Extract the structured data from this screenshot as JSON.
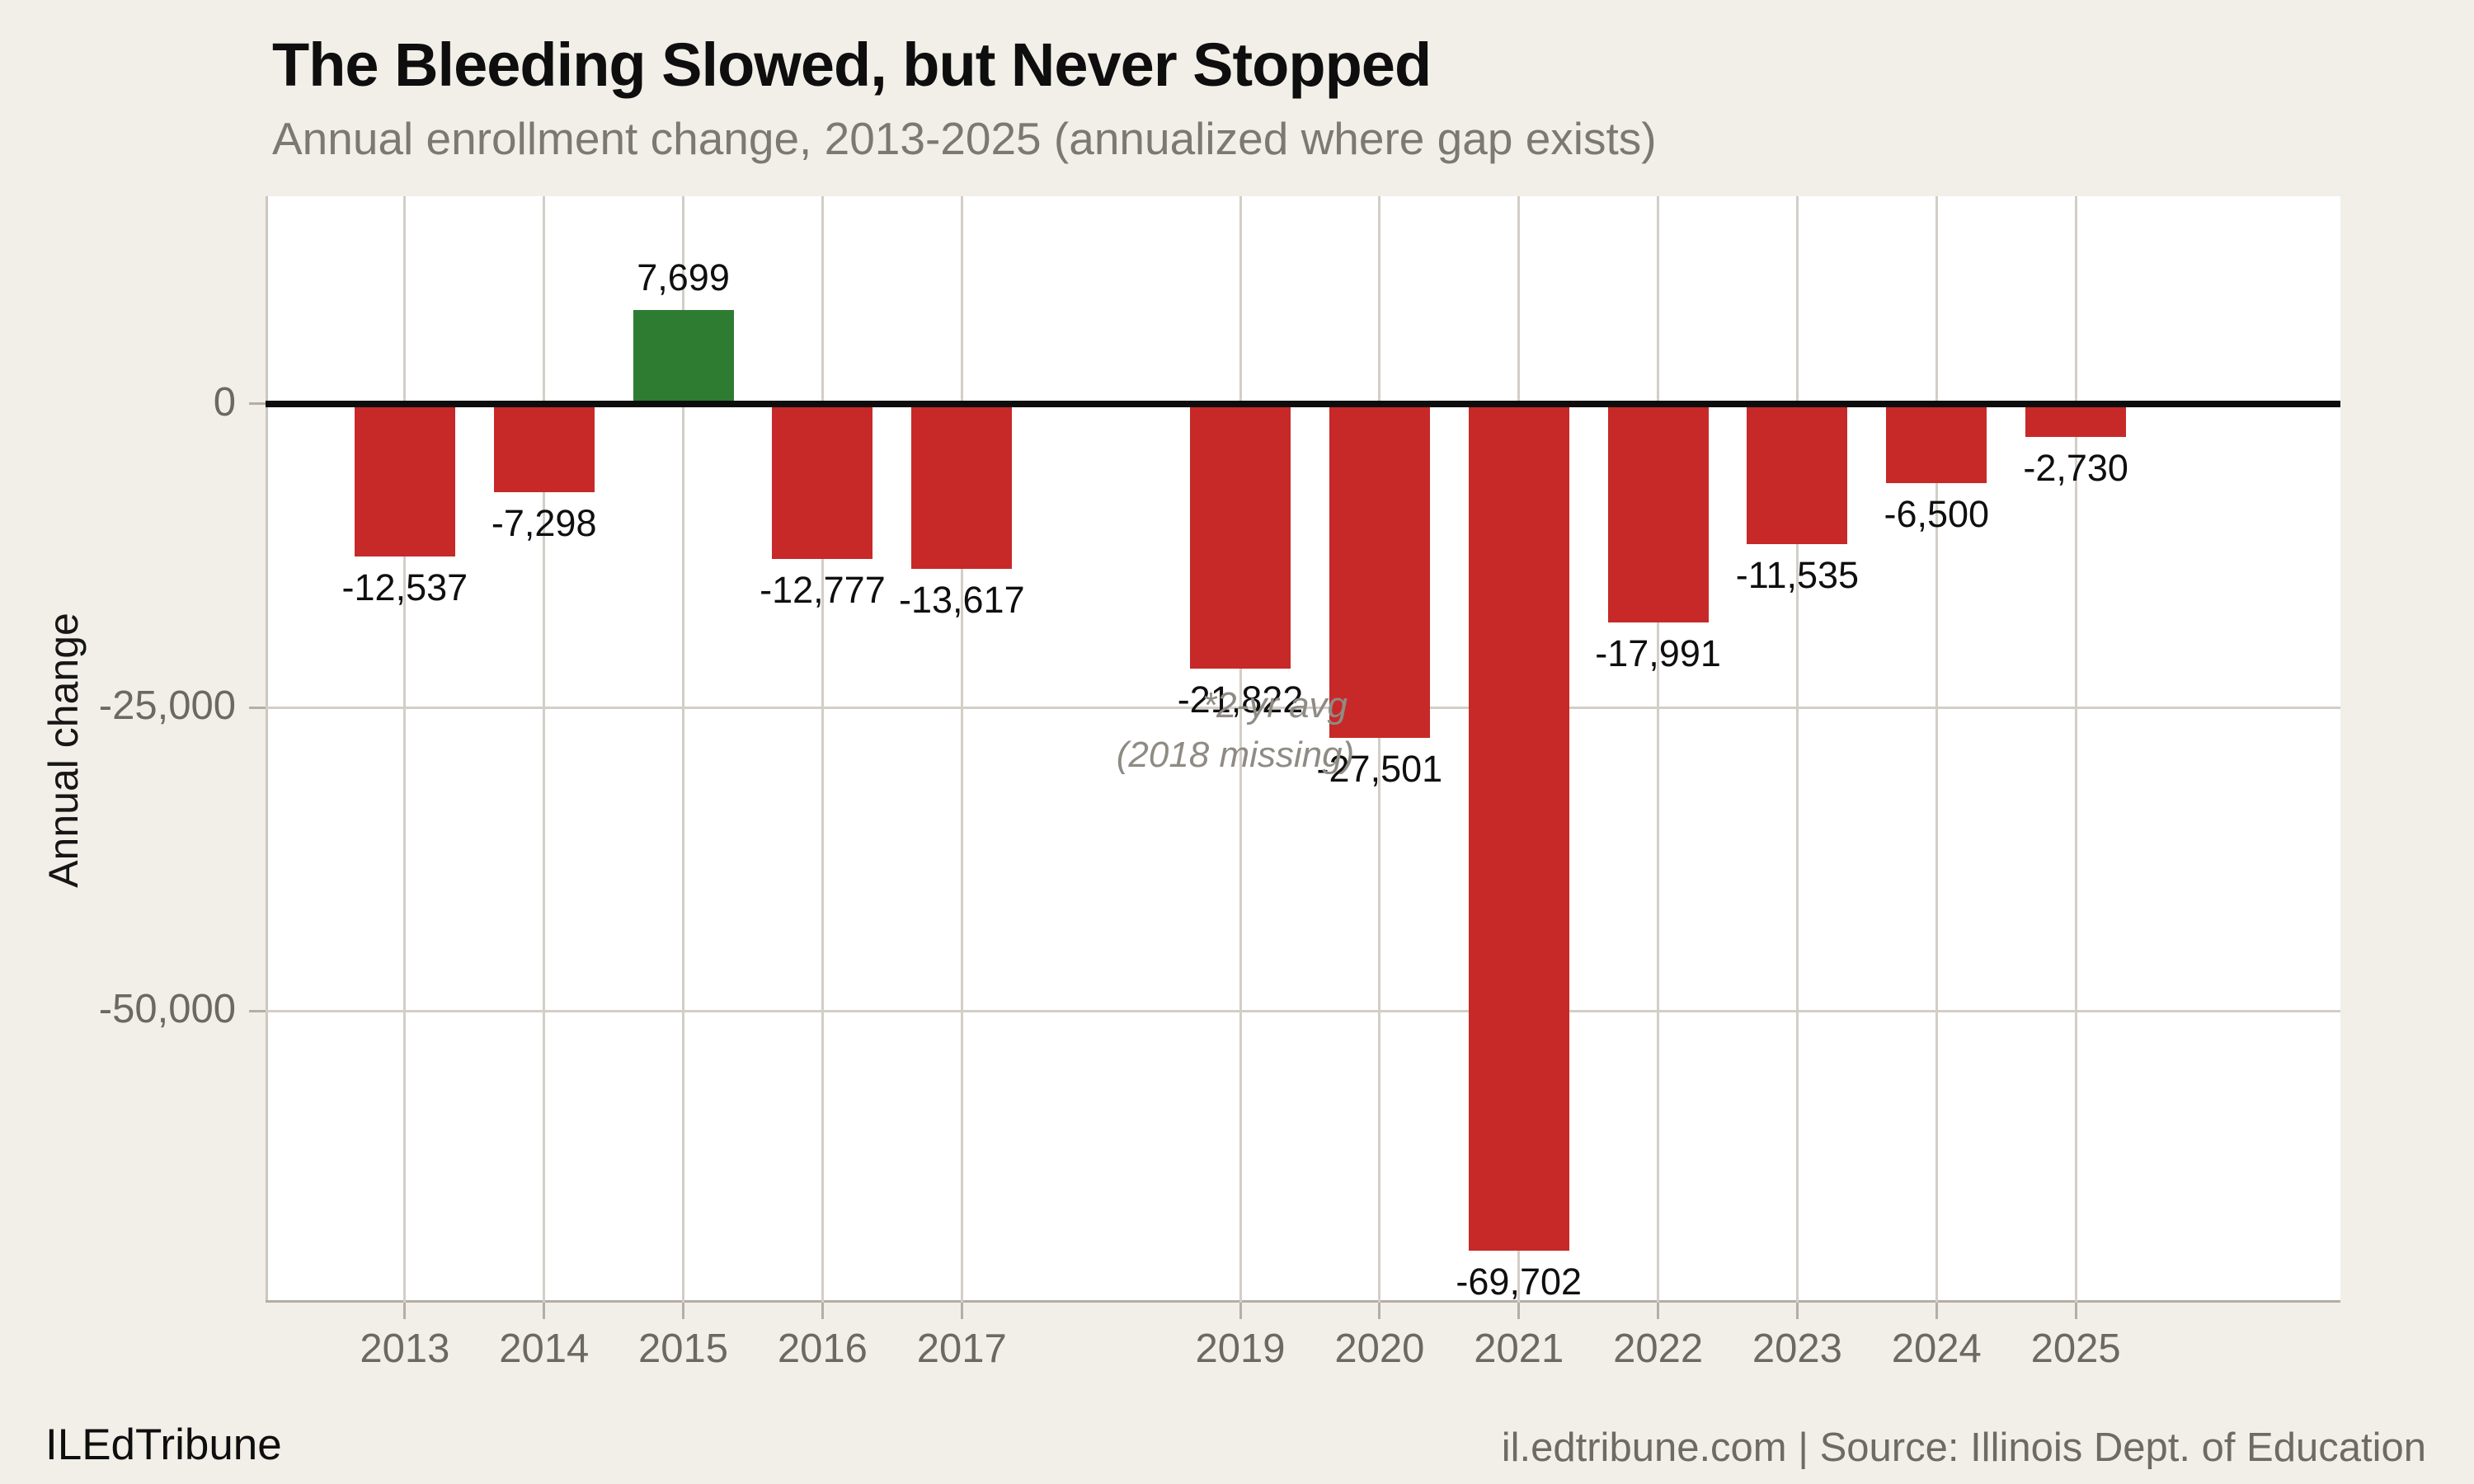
{
  "header": {
    "title": "The Bleeding Slowed, but Never Stopped",
    "subtitle": "Annual enrollment change, 2013-2025 (annualized where gap exists)"
  },
  "footer": {
    "brand": "ILEdTribune",
    "source": "il.edtribune.com | Source: Illinois Dept. of Education"
  },
  "chart_data": {
    "type": "bar",
    "title": "The Bleeding Slowed, but Never Stopped",
    "subtitle": "Annual enrollment change, 2013-2025 (annualized where gap exists)",
    "xlabel": "",
    "ylabel": "Annual change",
    "x": [
      2013,
      2014,
      2015,
      2016,
      2017,
      2019,
      2020,
      2021,
      2022,
      2023,
      2024,
      2025
    ],
    "values": [
      -12537,
      -7298,
      7699,
      -12777,
      -13617,
      -21822,
      -27501,
      -69702,
      -17991,
      -11535,
      -6500,
      -2730
    ],
    "bar_value_labels": [
      "-12,537",
      "-7,298",
      "7,699",
      "-12,777",
      "-13,617",
      "-21,822",
      "-27,501",
      "-69,702",
      "-17,991",
      "-11,535",
      "-6,500",
      "-2,730"
    ],
    "x_tick_labels": [
      "2013",
      "2014",
      "2015",
      "2016",
      "2017",
      "2019",
      "2020",
      "2021",
      "2022",
      "2023",
      "2024",
      "2025"
    ],
    "missing_year": 2018,
    "annotation": {
      "line1": "*2-yr avg",
      "line2": "(2018 missing)",
      "year": 2019
    },
    "yticks": [
      {
        "value": 0,
        "label": "0"
      },
      {
        "value": -25000,
        "label": "-25,000"
      },
      {
        "value": -50000,
        "label": "-50,000"
      }
    ],
    "ylim": [
      -74000,
      17100
    ],
    "xlim": [
      2012.0,
      2026.9
    ],
    "grid": true,
    "legend": null,
    "colors": {
      "positive_bar": "#2d7c32",
      "negative_bar": "#c72929",
      "background": "#f2efe9",
      "plot_background": "#ffffff",
      "gridline": "#d3cec6",
      "zero_line": "#0d0d0d",
      "axis_text": "#6c6862",
      "annotation_text": "#8f8b84"
    }
  }
}
